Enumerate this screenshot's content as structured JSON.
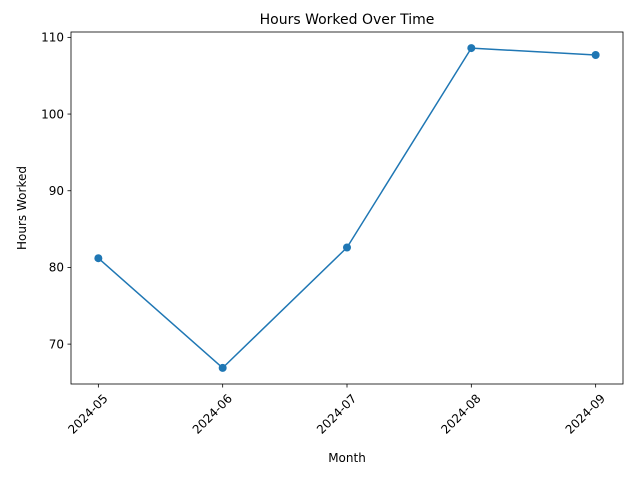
{
  "chart_data": {
    "type": "line",
    "title": "Hours Worked Over Time",
    "xlabel": "Month",
    "ylabel": "Hours Worked",
    "categories": [
      "2024-05",
      "2024-06",
      "2024-07",
      "2024-08",
      "2024-09"
    ],
    "series": [
      {
        "values": [
          81.2,
          66.9,
          82.6,
          108.6,
          107.7
        ],
        "color": "#1f77b4",
        "marker": "circle"
      }
    ],
    "yticks": [
      70,
      80,
      90,
      100,
      110
    ],
    "ylim": [
      64.8,
      110.7
    ],
    "x_tick_rotation": 45,
    "grid": false,
    "legend": false
  }
}
